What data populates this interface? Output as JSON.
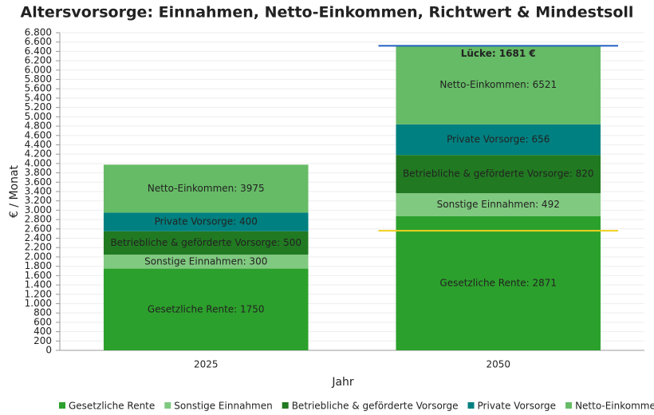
{
  "chart_data": {
    "type": "stacked_bar",
    "title": "Altersvorsorge: Einnahmen, Netto-Einkommen, Richtwert & Mindestsoll",
    "x_label": "Jahr",
    "y_label": "€ / Monat",
    "categories": [
      "2025",
      "2050"
    ],
    "series": [
      {
        "name": "Gesetzliche Rente",
        "color": "#2ca02c",
        "values": [
          1750,
          2871
        ],
        "value_labels": [
          "Gesetzliche Rente: 1750",
          "Gesetzliche Rente: 2871"
        ]
      },
      {
        "name": "Sonstige Einnahmen",
        "color": "#80c980",
        "values": [
          300,
          492
        ],
        "value_labels": [
          "Sonstige Einnahmen: 300",
          "Sonstige Einnahmen: 492"
        ]
      },
      {
        "name": "Betriebliche & geförderte Vorsorge",
        "color": "#217a21",
        "values": [
          500,
          820
        ],
        "value_labels": [
          "Betriebliche & geförderte Vorsorge: 500",
          "Betriebliche & geförderte Vorsorge: 820"
        ]
      },
      {
        "name": "Private Vorsorge",
        "color": "#008080",
        "values": [
          400,
          656
        ],
        "value_labels": [
          "Private Vorsorge: 400",
          "Private Vorsorge: 656"
        ]
      },
      {
        "name": "Netto-Einkommen",
        "color": "#66bb66",
        "values": [
          1025,
          1682
        ]
      }
    ],
    "total_labels": [
      "Netto-Einkommen: 3975",
      "Netto-Einkommen: 6521"
    ],
    "reference_lines": [
      {
        "value": 6521,
        "color": "#2060c0"
      },
      {
        "value": 2560,
        "color": "#f0d020"
      }
    ],
    "gap_label": "Lücke: 1681 €",
    "ylim": [
      0,
      6800
    ],
    "yticks": [
      0,
      200,
      400,
      600,
      800,
      {
        "value": 1000,
        "label": "1.000"
      },
      {
        "value": 1200,
        "label": "1.200"
      },
      {
        "value": 1400,
        "label": "1.400"
      },
      {
        "value": 1600,
        "label": "1.600"
      },
      {
        "value": 1800,
        "label": "1.800"
      },
      {
        "value": 2000,
        "label": "2.000"
      },
      {
        "value": 2200,
        "label": "2.200"
      },
      {
        "value": 2400,
        "label": "2.400"
      },
      {
        "value": 2600,
        "label": "2.600"
      },
      {
        "value": 2800,
        "label": "2.800"
      },
      {
        "value": 3000,
        "label": "3.000"
      },
      {
        "value": 3200,
        "label": "3.200"
      },
      {
        "value": 3400,
        "label": "3.400"
      },
      {
        "value": 3600,
        "label": "3.600"
      },
      {
        "value": 3800,
        "label": "3.800"
      },
      {
        "value": 4000,
        "label": "4.000"
      },
      {
        "value": 4200,
        "label": "4.200"
      },
      {
        "value": 4400,
        "label": "4.400"
      },
      {
        "value": 4600,
        "label": "4.600"
      },
      {
        "value": 4800,
        "label": "4.800"
      },
      {
        "value": 5000,
        "label": "5.000"
      },
      {
        "value": 5200,
        "label": "5.200"
      },
      {
        "value": 5400,
        "label": "5.400"
      },
      {
        "value": 5600,
        "label": "5.600"
      },
      {
        "value": 5800,
        "label": "5.800"
      },
      {
        "value": 6000,
        "label": "6.000"
      },
      {
        "value": 6200,
        "label": "6.200"
      },
      {
        "value": 6400,
        "label": "6.400"
      },
      {
        "value": 6600,
        "label": "6.600"
      },
      {
        "value": 6800,
        "label": "6.800"
      }
    ],
    "grid": true
  }
}
